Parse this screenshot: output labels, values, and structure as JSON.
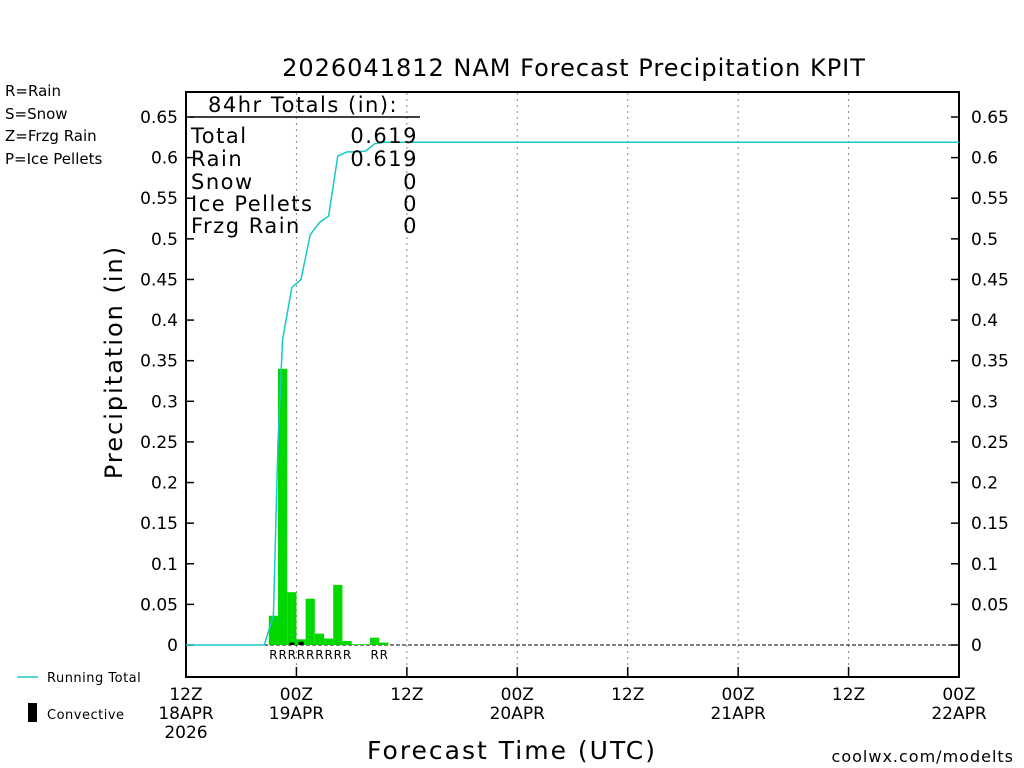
{
  "chart_data": {
    "type": "bar",
    "title": "2026041812 NAM Forecast Precipitation KPIT",
    "xlabel": "Forecast Time (UTC)",
    "ylabel": "Precipitation  (in)",
    "ylim": [
      0,
      0.65
    ],
    "yticks": [
      "0",
      "0.05",
      "0.1",
      "0.15",
      "0.2",
      "0.25",
      "0.3",
      "0.35",
      "0.4",
      "0.45",
      "0.5",
      "0.55",
      "0.6",
      "0.65"
    ],
    "xlim_hours": [
      0,
      84
    ],
    "xticks": [
      {
        "hour": 0,
        "lines": [
          "12Z",
          "18APR",
          "2026"
        ]
      },
      {
        "hour": 12,
        "lines": [
          "00Z",
          "19APR"
        ]
      },
      {
        "hour": 24,
        "lines": [
          "12Z"
        ]
      },
      {
        "hour": 36,
        "lines": [
          "00Z",
          "20APR"
        ]
      },
      {
        "hour": 48,
        "lines": [
          "12Z"
        ]
      },
      {
        "hour": 60,
        "lines": [
          "00Z",
          "21APR"
        ]
      },
      {
        "hour": 72,
        "lines": [
          "12Z"
        ]
      },
      {
        "hour": 84,
        "lines": [
          "00Z",
          "22APR"
        ]
      }
    ],
    "bars": [
      {
        "hour": 9.5,
        "value": 0.036
      },
      {
        "hour": 10.5,
        "value": 0.34
      },
      {
        "hour": 11.5,
        "value": 0.065
      },
      {
        "hour": 12.5,
        "value": 0.007
      },
      {
        "hour": 13.5,
        "value": 0.057
      },
      {
        "hour": 14.5,
        "value": 0.014
      },
      {
        "hour": 15.5,
        "value": 0.008
      },
      {
        "hour": 16.5,
        "value": 0.074
      },
      {
        "hour": 17.5,
        "value": 0.005
      },
      {
        "hour": 18.5,
        "value": 0.001
      },
      {
        "hour": 19.5,
        "value": 0.001
      },
      {
        "hour": 20.5,
        "value": 0.009
      },
      {
        "hour": 21.5,
        "value": 0.003
      }
    ],
    "convective": [
      {
        "hour": 11.5,
        "value": 0.003
      },
      {
        "hour": 12.5,
        "value": 0.004
      }
    ],
    "running_total": [
      [
        0,
        0
      ],
      [
        8.5,
        0
      ],
      [
        9.5,
        0.036
      ],
      [
        10,
        0.25
      ],
      [
        10.5,
        0.376
      ],
      [
        11.5,
        0.44
      ],
      [
        12.5,
        0.45
      ],
      [
        13.5,
        0.505
      ],
      [
        14.5,
        0.52
      ],
      [
        15.5,
        0.528
      ],
      [
        16.5,
        0.602
      ],
      [
        17.5,
        0.607
      ],
      [
        18.5,
        0.607
      ],
      [
        19.5,
        0.608
      ],
      [
        20.5,
        0.617
      ],
      [
        21.5,
        0.619
      ],
      [
        84,
        0.619
      ]
    ],
    "ptype_markers": [
      {
        "hour": 9.5,
        "label": "R"
      },
      {
        "hour": 10.5,
        "label": "R"
      },
      {
        "hour": 11.5,
        "label": "R"
      },
      {
        "hour": 12.5,
        "label": "R"
      },
      {
        "hour": 13.5,
        "label": "R"
      },
      {
        "hour": 14.5,
        "label": "R"
      },
      {
        "hour": 15.5,
        "label": "R"
      },
      {
        "hour": 16.5,
        "label": "R"
      },
      {
        "hour": 17.5,
        "label": "R"
      },
      {
        "hour": 20.5,
        "label": "R"
      },
      {
        "hour": 21.5,
        "label": "R"
      }
    ],
    "colors": {
      "rain": "#00d800",
      "snow": "#3030e0",
      "frzg_rain": "#f07f20",
      "ice_pellets": "#e01880",
      "running_total": "#18c8c8",
      "convective": "#000000",
      "credit": "#e01818"
    }
  },
  "legend": {
    "rain": "R=Rain",
    "snow": "S=Snow",
    "frzg_rain": "Z=Frzg Rain",
    "ice_pellets": "P=Ice Pellets",
    "running_total": "Running Total",
    "convective": "Convective"
  },
  "totals": {
    "header": "84hr Totals (in):",
    "rows": [
      {
        "label": "Total",
        "value": "0.619"
      },
      {
        "label": "Rain",
        "value": "0.619"
      },
      {
        "label": "Snow",
        "value": "0"
      },
      {
        "label": "Ice Pellets",
        "value": "0"
      },
      {
        "label": "Frzg Rain",
        "value": "0"
      }
    ]
  },
  "credit": "coolwx.com/modelts"
}
